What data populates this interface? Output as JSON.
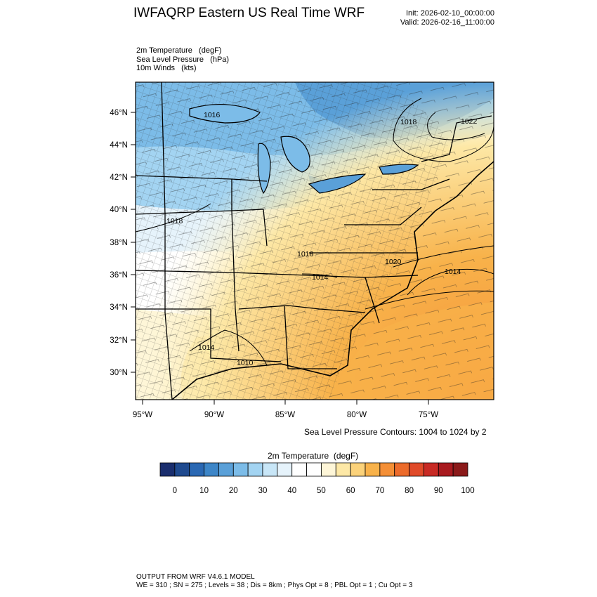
{
  "header": {
    "title": "IWFAQRP Eastern US Real Time WRF",
    "init": "Init: 2026-02-10_00:00:00",
    "valid": "Valid: 2026-02-16_11:00:00"
  },
  "variables": [
    "2m Temperature   (degF)",
    "Sea Level Pressure   (hPa)",
    "10m Winds   (kts)"
  ],
  "map": {
    "lat_labels": [
      "46°N",
      "44°N",
      "42°N",
      "40°N",
      "38°N",
      "36°N",
      "34°N",
      "32°N",
      "30°N"
    ],
    "lon_labels": [
      "95°W",
      "90°W",
      "85°W",
      "80°W",
      "75°W"
    ],
    "pressure_labels": [
      "1016",
      "1018",
      "1022",
      "1018",
      "1016",
      "1020",
      "1014",
      "1014",
      "1014",
      "1010"
    ],
    "contour_note": "Sea Level Pressure Contours: 1004 to 1024 by 2"
  },
  "colorbar": {
    "title": "2m Temperature  (degF)",
    "colors": [
      "#1a2e6e",
      "#1f4a8f",
      "#2a68b3",
      "#3d86c8",
      "#5aa0d8",
      "#7cbce8",
      "#a3d4f2",
      "#c8e6f7",
      "#e6f3fb",
      "#ffffff",
      "#ffffff",
      "#fef6d8",
      "#fde8a6",
      "#fbd27a",
      "#f8b24a",
      "#f48f36",
      "#ec6b2b",
      "#e04a29",
      "#c82a24",
      "#a81a1f",
      "#8b1a1a"
    ],
    "ticks": [
      "0",
      "10",
      "20",
      "30",
      "40",
      "50",
      "60",
      "70",
      "80",
      "90",
      "100"
    ]
  },
  "footer": {
    "line1": "OUTPUT FROM WRF V4.6.1 MODEL",
    "line2": "WE = 310 ; SN = 275 ; Levels = 38 ; Dis = 8km ; Phys Opt = 8 ; PBL Opt = 1 ; Cu Opt = 3"
  }
}
